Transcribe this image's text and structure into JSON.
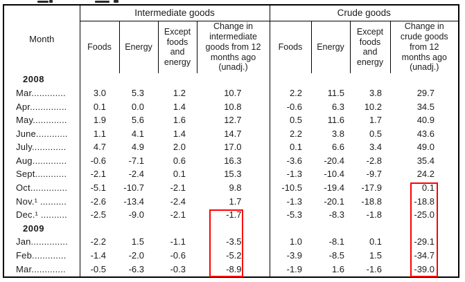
{
  "table": {
    "month_header": "Month",
    "groups": [
      {
        "label": "Intermediate goods",
        "columns": [
          "Foods",
          "Energy",
          "Except foods and energy",
          "Change in intermediate goods from 12 months ago (unadj.)"
        ]
      },
      {
        "label": "Crude goods",
        "columns": [
          "Foods",
          "Energy",
          "Except foods and energy",
          "Change in crude goods from 12 months ago (unadj.)"
        ]
      }
    ],
    "rows": [
      {
        "type": "year",
        "label": "2008"
      },
      {
        "type": "data",
        "label": "Mar.............",
        "values": [
          "3.0",
          "5.3",
          "1.2",
          "10.7",
          "2.2",
          "11.5",
          "3.8",
          "29.7"
        ]
      },
      {
        "type": "data",
        "label": "Apr..............",
        "values": [
          "0.1",
          "0.0",
          "1.4",
          "10.8",
          "-0.6",
          "6.3",
          "10.2",
          "34.5"
        ]
      },
      {
        "type": "data",
        "label": "May.............",
        "values": [
          "1.9",
          "5.6",
          "1.6",
          "12.7",
          "0.5",
          "11.6",
          "1.7",
          "40.9"
        ]
      },
      {
        "type": "data",
        "label": "June............",
        "values": [
          "1.1",
          "4.1",
          "1.4",
          "14.7",
          "2.2",
          "3.8",
          "0.5",
          "43.6"
        ]
      },
      {
        "type": "data",
        "label": "July.............",
        "values": [
          "4.7",
          "4.9",
          "2.0",
          "17.0",
          "0.1",
          "6.6",
          "3.4",
          "49.0"
        ]
      },
      {
        "type": "data",
        "label": "Aug.............",
        "values": [
          "-0.6",
          "-7.1",
          "0.6",
          "16.3",
          "-3.6",
          "-20.4",
          "-2.8",
          "35.4"
        ]
      },
      {
        "type": "data",
        "label": "Sept............",
        "values": [
          "-2.1",
          "-2.4",
          "0.1",
          "15.3",
          "-1.3",
          "-10.4",
          "-9.7",
          "24.2"
        ]
      },
      {
        "type": "data",
        "label": "Oct..............",
        "values": [
          "-5.1",
          "-10.7",
          "-2.1",
          "9.8",
          "-10.5",
          "-19.4",
          "-17.9",
          "0.1"
        ]
      },
      {
        "type": "data",
        "label": "Nov.¹ ..........",
        "values": [
          "-2.6",
          "-13.4",
          "-2.4",
          "1.7",
          "-1.3",
          "-20.1",
          "-18.8",
          "-18.8"
        ]
      },
      {
        "type": "data",
        "label": "Dec.¹ ..........",
        "values": [
          "-2.5",
          "-9.0",
          "-2.1",
          "-1.7",
          "-5.3",
          "-8.3",
          "-1.8",
          "-25.0"
        ]
      },
      {
        "type": "year",
        "label": "2009"
      },
      {
        "type": "data",
        "label": "Jan..............",
        "values": [
          "-2.2",
          "1.5",
          "-1.1",
          "-3.5",
          "1.0",
          "-8.1",
          "0.1",
          "-29.1"
        ]
      },
      {
        "type": "data",
        "label": "Feb.............",
        "values": [
          "-1.4",
          "-2.0",
          "-0.6",
          "-5.2",
          "-3.9",
          "-8.5",
          "1.5",
          "-34.7"
        ]
      },
      {
        "type": "data",
        "label": "Mar.............",
        "values": [
          "-0.5",
          "-6.3",
          "-0.3",
          "-8.9",
          "-1.9",
          "1.6",
          "-1.6",
          "-39.0"
        ]
      }
    ]
  },
  "annotations": {
    "intermediate_change_box": {
      "color": "#fe0000",
      "column": "Change in intermediate goods from 12 months ago (unadj.)",
      "highlighted_values": [
        "-1.7",
        "-3.5",
        "-5.2",
        "-8.9"
      ],
      "rows": [
        "Dec. 2008",
        "Jan. 2009",
        "Feb. 2009",
        "Mar. 2009"
      ]
    },
    "crude_change_box": {
      "color": "#fe0000",
      "column": "Change in crude goods from 12 months ago (unadj.)",
      "highlighted_values": [
        "0.1",
        "-18.8",
        "-25.0",
        "-29.1",
        "-34.7",
        "-39.0"
      ],
      "rows": [
        "Oct. 2008",
        "Nov. 2008",
        "Dec. 2008",
        "Jan. 2009",
        "Feb. 2009",
        "Mar. 2009"
      ]
    }
  }
}
